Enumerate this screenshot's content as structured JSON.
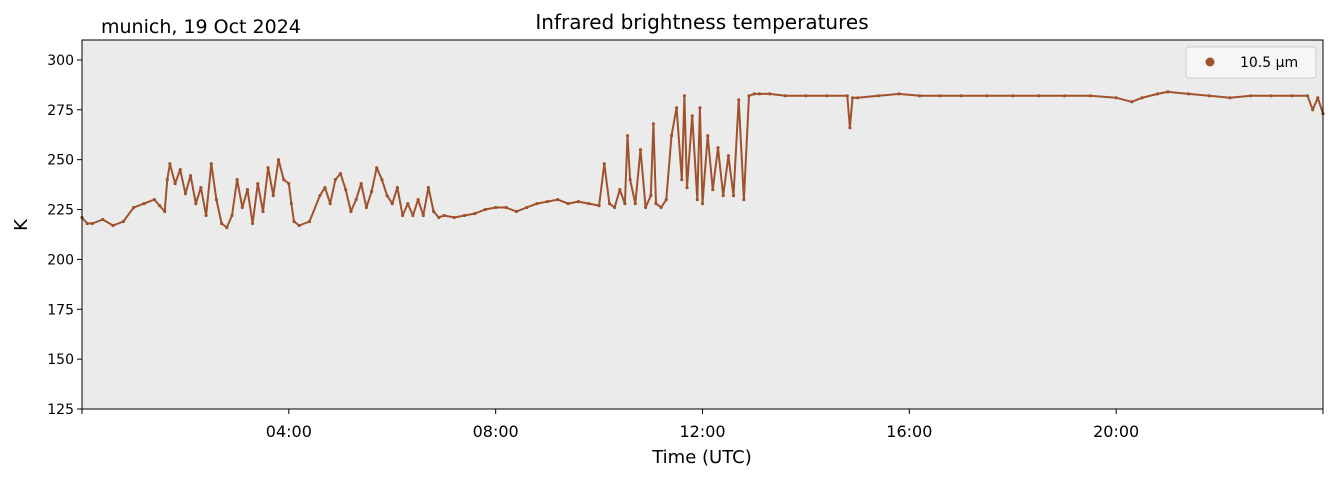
{
  "chart_data": {
    "type": "scatter",
    "title": "Infrared brightness temperatures",
    "subtitle": "munich, 19 Oct 2024",
    "xlabel": "Time (UTC)",
    "ylabel": "K",
    "xlim_hours": [
      0,
      24
    ],
    "ylim": [
      125,
      310
    ],
    "yticks": [
      125,
      150,
      175,
      200,
      225,
      250,
      275,
      300
    ],
    "xtick_hours": [
      4,
      8,
      12,
      16,
      20
    ],
    "xtick_labels": [
      "04:00",
      "08:00",
      "12:00",
      "16:00",
      "20:00"
    ],
    "grid": false,
    "legend_position": "top-right",
    "plot_background": "#ebebeb",
    "series": [
      {
        "name": "10.5 µm",
        "color": "#a0522d",
        "hours": [
          0.0,
          0.1,
          0.2,
          0.4,
          0.6,
          0.8,
          1.0,
          1.2,
          1.4,
          1.5,
          1.6,
          1.65,
          1.7,
          1.8,
          1.9,
          2.0,
          2.1,
          2.2,
          2.3,
          2.4,
          2.5,
          2.6,
          2.7,
          2.8,
          2.9,
          3.0,
          3.1,
          3.2,
          3.3,
          3.4,
          3.5,
          3.6,
          3.7,
          3.8,
          3.9,
          4.0,
          4.05,
          4.1,
          4.2,
          4.4,
          4.6,
          4.7,
          4.8,
          4.9,
          5.0,
          5.1,
          5.2,
          5.3,
          5.4,
          5.5,
          5.6,
          5.7,
          5.8,
          5.9,
          6.0,
          6.1,
          6.2,
          6.3,
          6.4,
          6.5,
          6.6,
          6.7,
          6.8,
          6.9,
          7.0,
          7.2,
          7.4,
          7.6,
          7.8,
          8.0,
          8.2,
          8.4,
          8.6,
          8.8,
          9.0,
          9.2,
          9.4,
          9.6,
          9.8,
          10.0,
          10.1,
          10.2,
          10.3,
          10.4,
          10.5,
          10.55,
          10.6,
          10.7,
          10.8,
          10.9,
          11.0,
          11.05,
          11.1,
          11.2,
          11.3,
          11.4,
          11.5,
          11.6,
          11.65,
          11.7,
          11.8,
          11.9,
          11.95,
          12.0,
          12.1,
          12.2,
          12.3,
          12.4,
          12.5,
          12.6,
          12.7,
          12.8,
          12.9,
          13.0,
          13.1,
          13.3,
          13.6,
          14.0,
          14.4,
          14.8,
          14.85,
          14.9,
          15.0,
          15.4,
          15.8,
          16.2,
          16.6,
          17.0,
          17.5,
          18.0,
          18.5,
          19.0,
          19.5,
          20.0,
          20.3,
          20.5,
          20.8,
          21.0,
          21.4,
          21.8,
          22.2,
          22.6,
          23.0,
          23.4,
          23.7,
          23.8,
          23.9,
          24.0
        ],
        "values": [
          221,
          218,
          218,
          220,
          217,
          219,
          226,
          228,
          230,
          227,
          224,
          240,
          248,
          238,
          245,
          233,
          242,
          228,
          236,
          222,
          248,
          230,
          218,
          216,
          222,
          240,
          226,
          235,
          218,
          238,
          224,
          246,
          232,
          250,
          240,
          238,
          228,
          219,
          217,
          219,
          232,
          236,
          228,
          240,
          243,
          235,
          224,
          230,
          238,
          226,
          234,
          246,
          240,
          232,
          228,
          236,
          222,
          228,
          222,
          230,
          222,
          236,
          224,
          221,
          222,
          221,
          222,
          223,
          225,
          226,
          226,
          224,
          226,
          228,
          229,
          230,
          228,
          229,
          228,
          227,
          248,
          228,
          226,
          235,
          228,
          262,
          240,
          228,
          255,
          226,
          232,
          268,
          228,
          226,
          230,
          262,
          276,
          240,
          282,
          236,
          272,
          230,
          276,
          228,
          262,
          235,
          256,
          232,
          252,
          232,
          280,
          230,
          282,
          283,
          283,
          283,
          282,
          282,
          282,
          282,
          266,
          281,
          281,
          282,
          283,
          282,
          282,
          282,
          282,
          282,
          282,
          282,
          282,
          281,
          279,
          281,
          283,
          284,
          283,
          282,
          281,
          282,
          282,
          282,
          282,
          275,
          281,
          273
        ]
      }
    ]
  }
}
